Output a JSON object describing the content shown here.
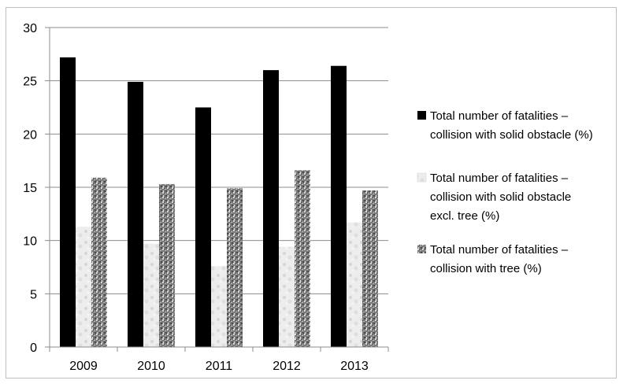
{
  "chart_data": {
    "type": "bar",
    "categories": [
      "2009",
      "2010",
      "2011",
      "2012",
      "2013"
    ],
    "series": [
      {
        "name": "Total number of fatalities – collision with solid obstacle (%)",
        "values": [
          27.2,
          24.9,
          22.5,
          26.0,
          26.4
        ],
        "color": "#000000"
      },
      {
        "name": "Total number of fatalities – collision with solid obstacle excl. tree (%)",
        "values": [
          11.3,
          9.7,
          7.6,
          9.4,
          11.7
        ],
        "color": "#ececec"
      },
      {
        "name": "Total number of fatalities – collision with tree (%)",
        "values": [
          15.9,
          15.3,
          14.9,
          16.6,
          14.7
        ],
        "color": "#8c8c8c"
      }
    ],
    "legend_lines": [
      [
        "Total number of fatalities –",
        "collision with solid obstacle (%)"
      ],
      [
        "Total number of fatalities –",
        "collision with solid obstacle",
        "excl. tree (%)"
      ],
      [
        "Total number of fatalities –",
        "collision with tree (%)"
      ]
    ],
    "yticks": [
      "0",
      "5",
      "10",
      "15",
      "20",
      "25",
      "30"
    ],
    "ylim": [
      0,
      30
    ],
    "grid": true,
    "legend_position": "right"
  }
}
